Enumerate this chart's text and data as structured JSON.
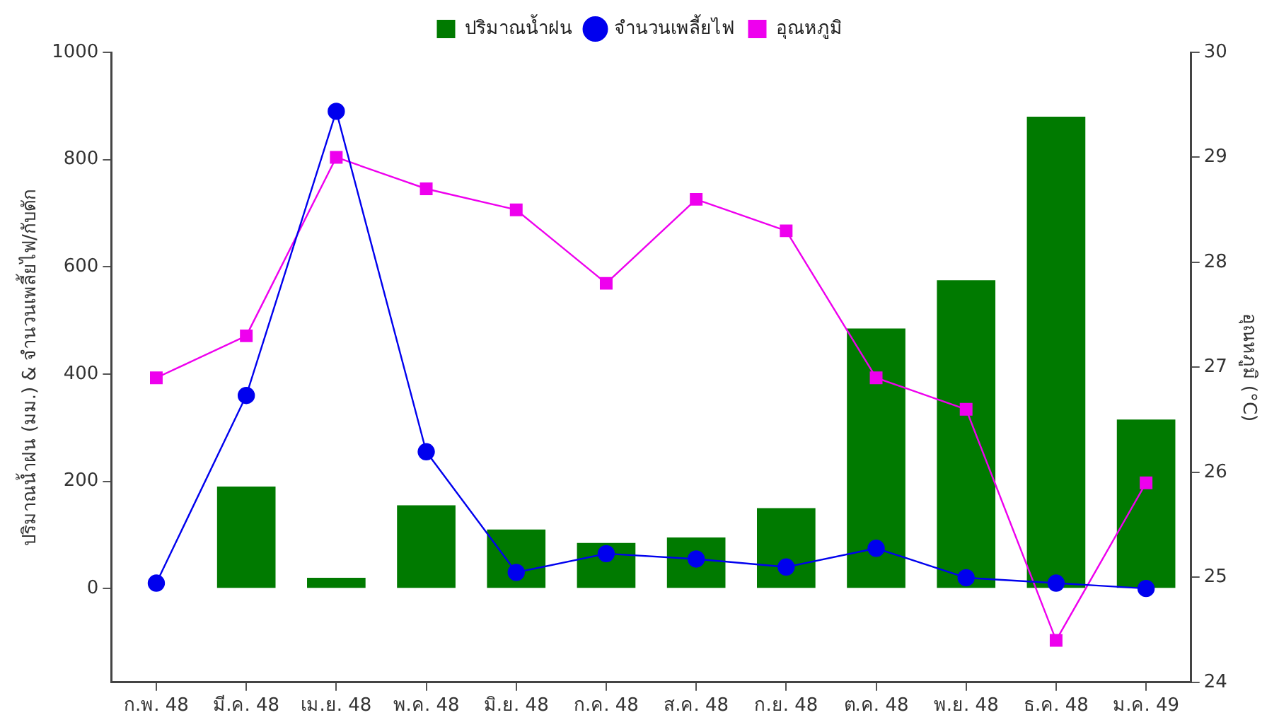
{
  "chart_data": {
    "type": "bar",
    "categories": [
      "ก.พ. 48",
      "มี.ค. 48",
      "เม.ย. 48",
      "พ.ค. 48",
      "มิ.ย. 48",
      "ก.ค. 48",
      "ส.ค. 48",
      "ก.ย. 48",
      "ต.ค. 48",
      "พ.ย. 48",
      "ธ.ค. 48",
      "ม.ค. 49"
    ],
    "ylabel": "ปริมาณน้ำฝน (มม.) & จำนวนเพลี้ยไฟ/กับดัก",
    "y2label": "อุณหภูมิ (°C)",
    "series": [
      {
        "name": "ปริมาณน้ำฝน",
        "color": "#007a00",
        "values": [
          0,
          190,
          20,
          155,
          110,
          85,
          95,
          150,
          485,
          575,
          880,
          315
        ]
      },
      {
        "name": "จำนวนเพลี้ยไฟ",
        "type": "line",
        "color": "#0000ee",
        "marker": "circle",
        "values": [
          10,
          360,
          890,
          255,
          30,
          65,
          55,
          40,
          75,
          20,
          10,
          0
        ]
      },
      {
        "name": "อุณหภูมิ",
        "type": "line",
        "color": "#ee00ee",
        "marker": "square",
        "axis": "y2",
        "values": [
          26.9,
          27.3,
          29.0,
          28.7,
          28.5,
          27.8,
          28.6,
          28.3,
          26.9,
          26.6,
          24.4,
          25.9
        ]
      }
    ],
    "ylim": [
      -175,
      1000
    ],
    "yticks": [
      0,
      200,
      400,
      600,
      800,
      1000
    ],
    "y2lim": [
      24,
      30
    ],
    "y2ticks": [
      24,
      25,
      26,
      27,
      28,
      29,
      30
    ],
    "grid": false,
    "legend": "top"
  }
}
